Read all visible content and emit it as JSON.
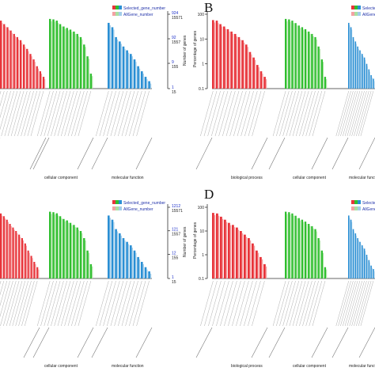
{
  "panels": [
    {
      "letter": "",
      "legend": [
        "Selected_gene_number",
        "AllGene_number"
      ],
      "right_axis_top": [
        "924",
        "15571"
      ],
      "right_axis_mid1": [
        "92",
        "1557"
      ],
      "right_axis_mid2": [
        "9",
        "155"
      ],
      "right_axis_bottom": [
        "1",
        "15"
      ],
      "right_axis_label": "Number of genes",
      "left_axis_label": "",
      "y_ticks": [],
      "categories": [
        "",
        "cellular component",
        "molecular function"
      ]
    },
    {
      "letter": "B",
      "legend": [
        "Selected_gene_number",
        "AllGene_number"
      ],
      "right_axis_top": [],
      "right_axis_mid1": [],
      "right_axis_mid2": [],
      "right_axis_bottom": [],
      "right_axis_label": "",
      "left_axis_label": "Percentage of genes",
      "y_ticks": [
        "100",
        "10",
        "1",
        "0.1"
      ],
      "categories": [
        "biological process",
        "cellular component",
        "molecular function"
      ]
    },
    {
      "letter": "",
      "legend": [
        "Selected_gene_number",
        "AllGene_number"
      ],
      "right_axis_top": [
        "1212",
        "15571"
      ],
      "right_axis_mid1": [
        "121",
        "1557"
      ],
      "right_axis_mid2": [
        "12",
        "155"
      ],
      "right_axis_bottom": [
        "1",
        "15"
      ],
      "right_axis_label": "Number of genes",
      "left_axis_label": "",
      "y_ticks": [],
      "categories": [
        "",
        "cellular component",
        "molecular function"
      ]
    },
    {
      "letter": "D",
      "legend": [
        "Selected_gene_number",
        "AllGene_number"
      ],
      "right_axis_top": [],
      "right_axis_mid1": [],
      "right_axis_mid2": [],
      "right_axis_bottom": [],
      "right_axis_label": "",
      "left_axis_label": "Percentage of genes",
      "y_ticks": [
        "100",
        "10",
        "1",
        "0.1"
      ],
      "categories": [
        "biological process",
        "cellular component",
        "molecular function"
      ]
    }
  ],
  "colors": {
    "bp": "#e8343a",
    "cc": "#2fbf2f",
    "mf": "#2a8fd4",
    "bp_light": "#f3a2a4",
    "cc_light": "#a9e0a0",
    "mf_light": "#a3cde9",
    "axis": "#333333",
    "right_axis": "#1b2ec9"
  },
  "chart_data": [
    {
      "type": "bar",
      "title": "",
      "scale": "log",
      "ylim": [
        0.1,
        100
      ],
      "series": [
        {
          "group": "biological process",
          "values": [
            55,
            40,
            30,
            22,
            16,
            12,
            9,
            6,
            4,
            2.5,
            1.5,
            0.8,
            0.5,
            0.3
          ]
        },
        {
          "group": "cellular component",
          "values": [
            65,
            62,
            55,
            40,
            32,
            28,
            24,
            20,
            16,
            12,
            6,
            2,
            0.4
          ]
        },
        {
          "group": "molecular function",
          "values": [
            45,
            30,
            12,
            8,
            5,
            3.5,
            2.5,
            1.5,
            0.8,
            0.5,
            0.3,
            0.2
          ]
        }
      ]
    },
    {
      "type": "bar",
      "title": "",
      "scale": "log",
      "ylim": [
        0.1,
        100
      ],
      "series": [
        {
          "group": "biological process",
          "values": [
            58,
            55,
            40,
            32,
            25,
            20,
            16,
            12,
            9,
            6,
            3,
            1.8,
            0.9,
            0.5,
            0.3
          ]
        },
        {
          "group": "cellular component",
          "values": [
            65,
            62,
            55,
            44,
            35,
            30,
            25,
            20,
            16,
            12,
            5,
            1.5,
            0.3
          ]
        },
        {
          "group": "molecular function",
          "values": [
            45,
            30,
            12,
            8,
            5,
            3.5,
            2.5,
            1.8,
            1,
            0.6,
            0.35,
            0.25
          ]
        }
      ]
    },
    {
      "type": "bar",
      "title": "",
      "scale": "log",
      "ylim": [
        0.1,
        100
      ],
      "series": [
        {
          "group": "biological process",
          "values": [
            55,
            42,
            30,
            20,
            14,
            10,
            7,
            5,
            3,
            1.5,
            0.9,
            0.5,
            0.3
          ]
        },
        {
          "group": "cellular component",
          "values": [
            65,
            62,
            56,
            42,
            32,
            28,
            22,
            18,
            14,
            10,
            5,
            1.5,
            0.4
          ]
        },
        {
          "group": "molecular function",
          "values": [
            45,
            30,
            12,
            8,
            5,
            3.5,
            2.5,
            1.5,
            0.8,
            0.5,
            0.3,
            0.2
          ]
        }
      ]
    },
    {
      "type": "bar",
      "title": "",
      "scale": "log",
      "ylim": [
        0.1,
        100
      ],
      "series": [
        {
          "group": "biological process",
          "values": [
            58,
            55,
            40,
            30,
            22,
            18,
            14,
            10,
            7,
            5,
            3,
            1.5,
            0.8,
            0.4
          ]
        },
        {
          "group": "cellular component",
          "values": [
            65,
            62,
            55,
            44,
            35,
            30,
            25,
            20,
            16,
            12,
            5,
            1.5,
            0.3
          ]
        },
        {
          "group": "molecular function",
          "values": [
            45,
            30,
            12,
            8,
            5,
            3.5,
            2.5,
            1.8,
            1,
            0.6,
            0.35,
            0.25
          ]
        }
      ]
    }
  ]
}
